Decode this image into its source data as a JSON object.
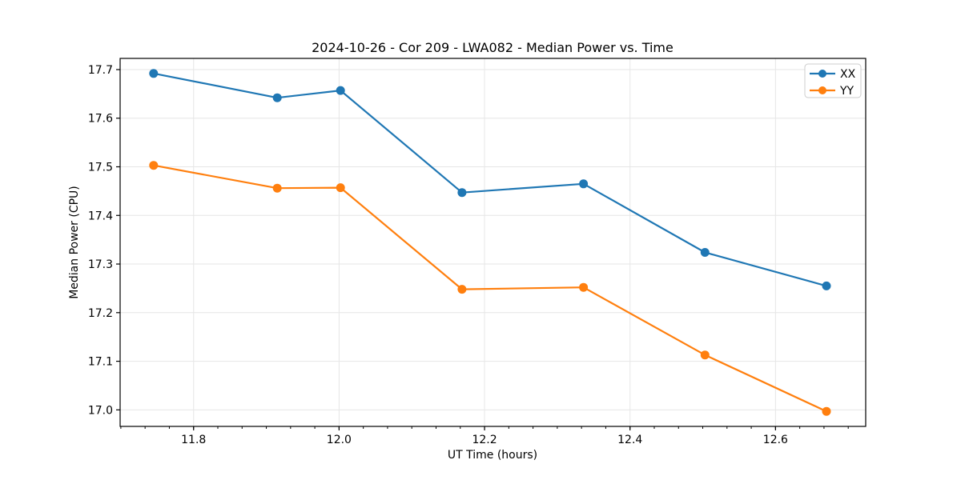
{
  "title": "2024-10-26 - Cor 209 - LWA082 - Median Power vs. Time",
  "chart_data": {
    "type": "line",
    "title": "2024-10-26 - Cor 209 - LWA082 - Median Power vs. Time",
    "xlabel": "UT Time (hours)",
    "ylabel": "Median Power (CPU)",
    "x": [
      11.745,
      11.915,
      12.002,
      12.169,
      12.336,
      12.503,
      12.67
    ],
    "series": [
      {
        "name": "XX",
        "color": "#1f77b4",
        "values": [
          17.692,
          17.642,
          17.657,
          17.447,
          17.465,
          17.324,
          17.255
        ]
      },
      {
        "name": "YY",
        "color": "#ff7f0e",
        "values": [
          17.503,
          17.456,
          17.457,
          17.248,
          17.252,
          17.113,
          16.997
        ]
      }
    ],
    "xlim": [
      11.699,
      12.724
    ],
    "ylim": [
      16.966,
      17.723
    ],
    "xticks": [
      11.8,
      12.0,
      12.2,
      12.4,
      12.6
    ],
    "yticks": [
      17.0,
      17.1,
      17.2,
      17.3,
      17.4,
      17.5,
      17.6,
      17.7
    ],
    "minor_xtick_step": 0.0333333,
    "grid": true,
    "legend_position": "upper right",
    "marker": "o"
  },
  "colors": {
    "background": "#ffffff",
    "grid": "#e6e6e6",
    "axis": "#000000",
    "legend_border": "#cccccc"
  }
}
